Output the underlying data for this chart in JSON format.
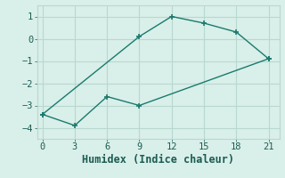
{
  "title": "",
  "xlabel": "Humidex (Indice chaleur)",
  "bg_color": "#d9efe9",
  "line_color": "#1a7a6e",
  "grid_color": "#b8d8d0",
  "line1_x": [
    0,
    9,
    12,
    15,
    18,
    21
  ],
  "line1_y": [
    -3.4,
    0.1,
    1.0,
    0.7,
    0.3,
    -0.9
  ],
  "line2_x": [
    0,
    3,
    6,
    9,
    21
  ],
  "line2_y": [
    -3.4,
    -3.9,
    -2.6,
    -3.0,
    -0.9
  ],
  "xlim": [
    -0.5,
    22
  ],
  "ylim": [
    -4.5,
    1.5
  ],
  "xticks": [
    0,
    3,
    6,
    9,
    12,
    15,
    18,
    21
  ],
  "yticks": [
    -4,
    -3,
    -2,
    -1,
    0,
    1
  ],
  "font_color": "#1a5c52",
  "tick_fontsize": 7.5,
  "label_fontsize": 8.5
}
